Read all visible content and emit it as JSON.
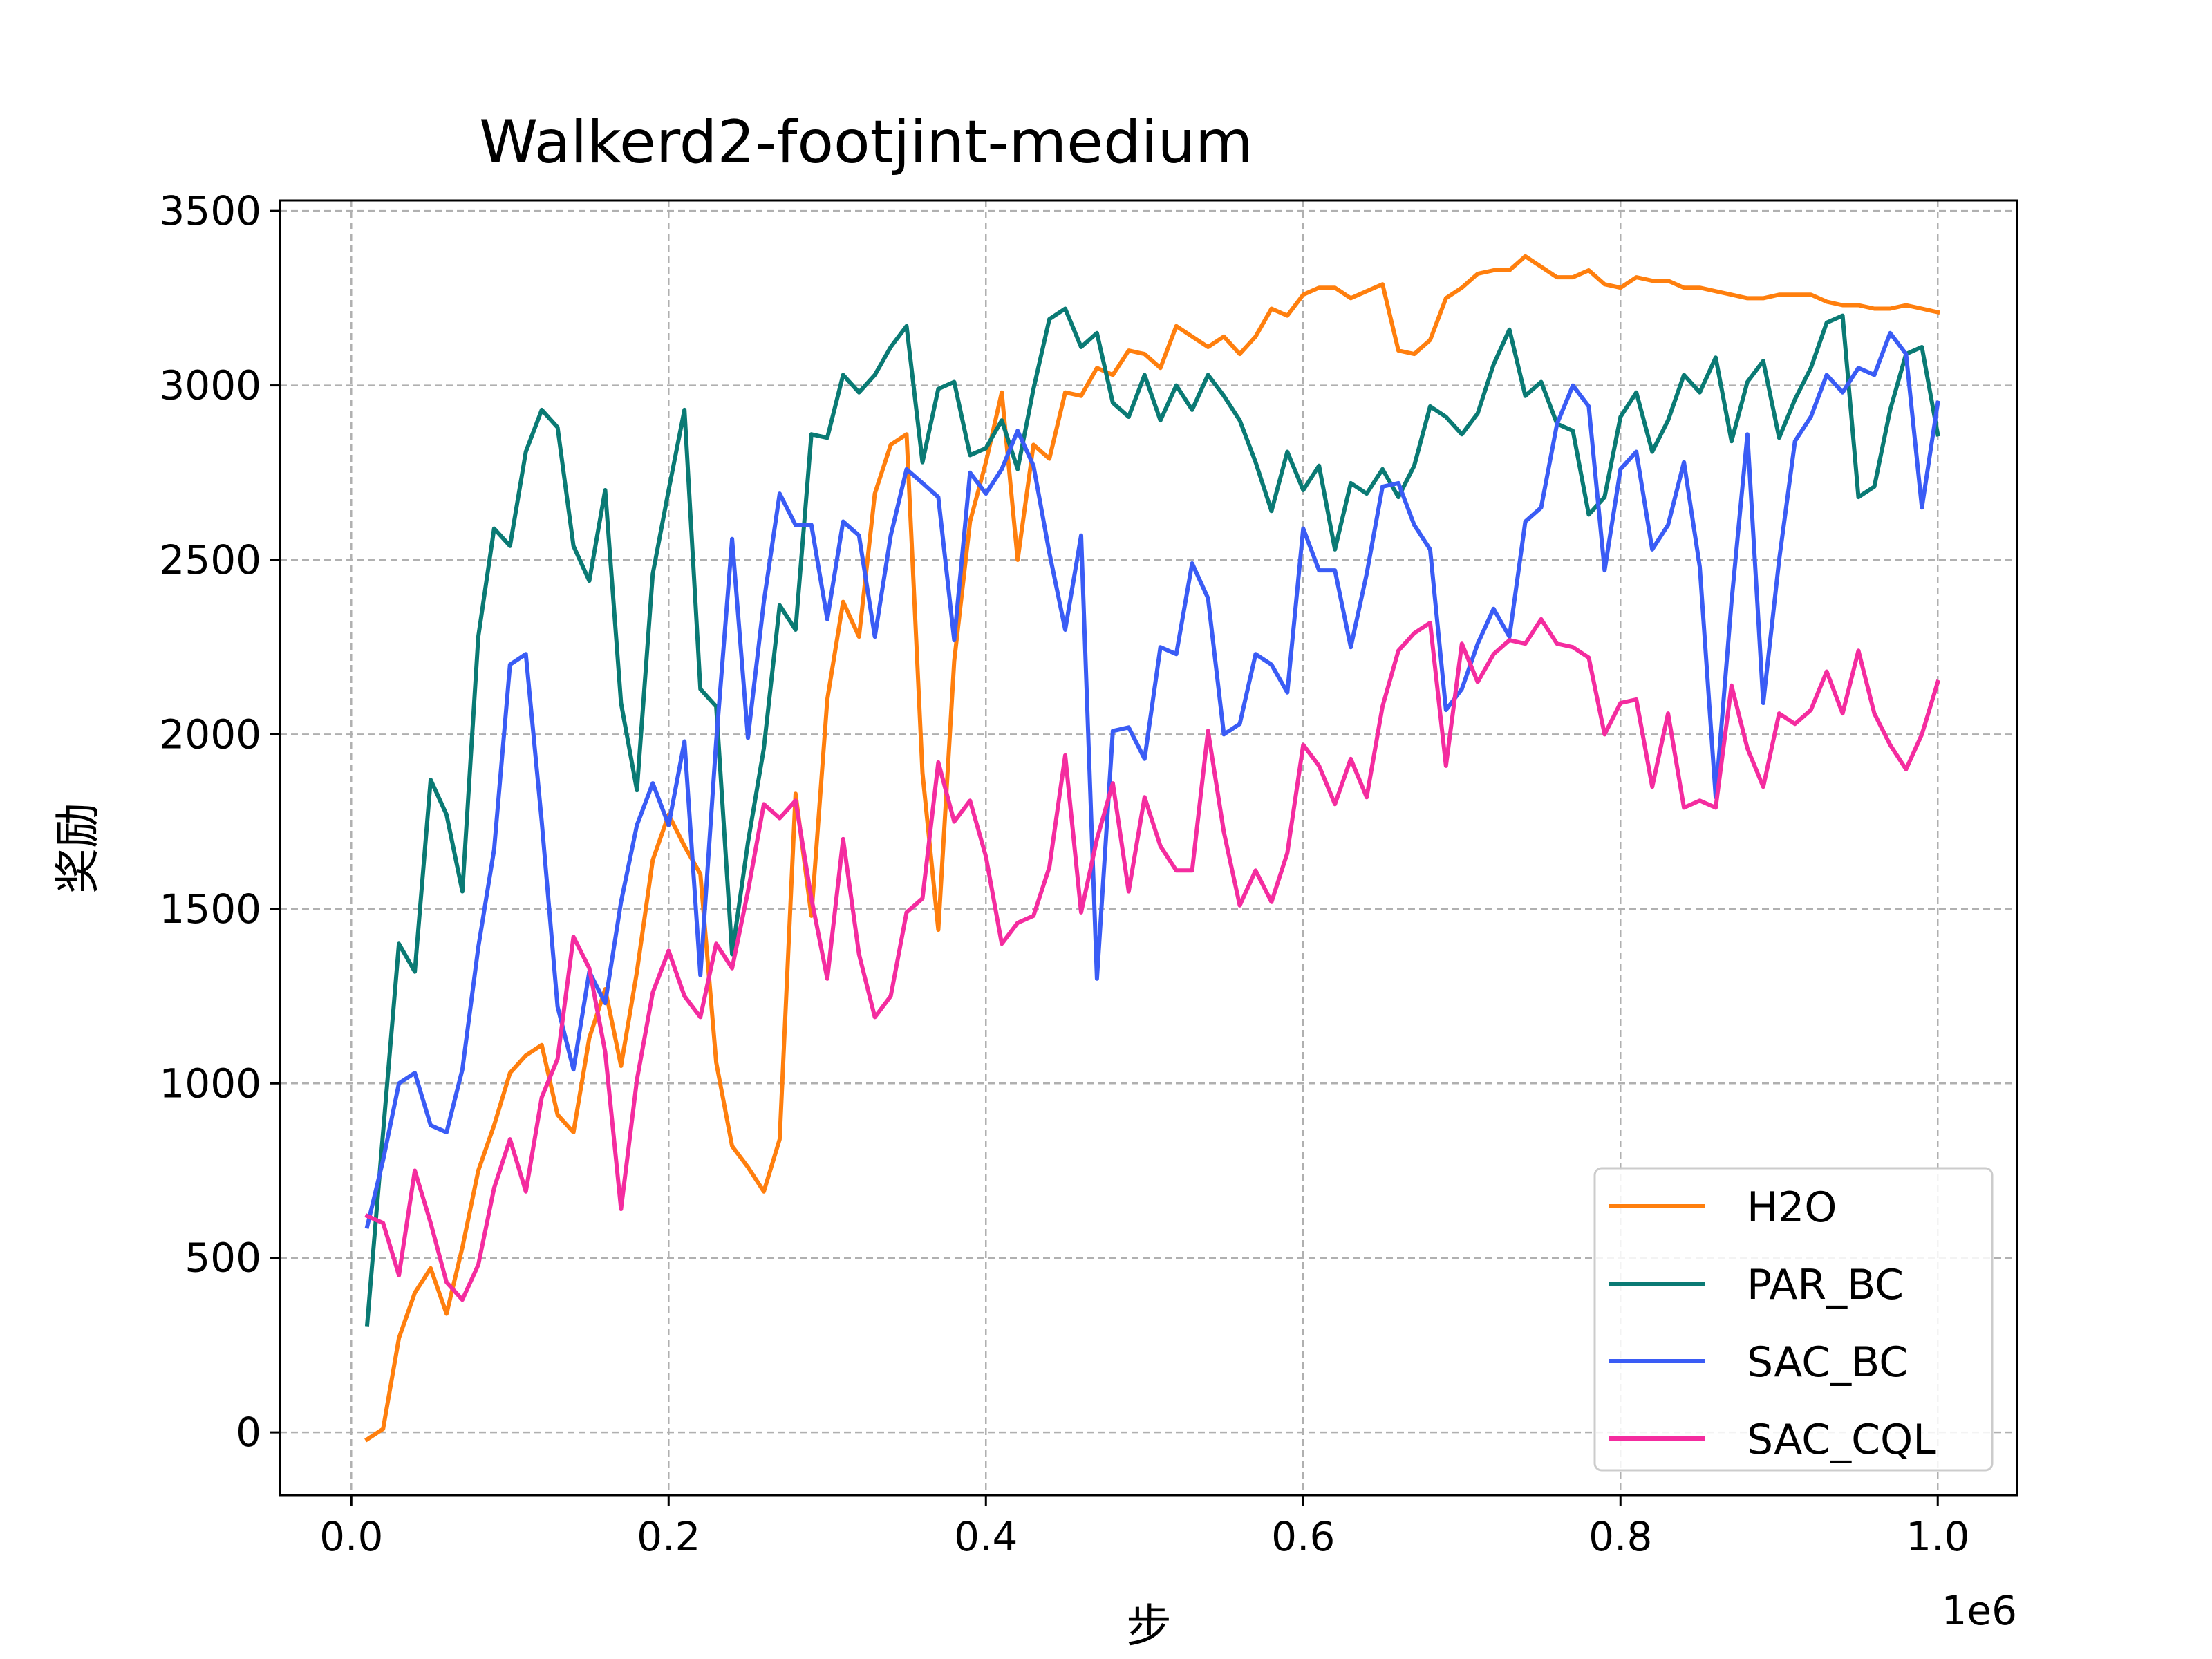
{
  "chart_data": {
    "type": "line",
    "title": "Walkerd2-footjint-medium",
    "xlabel": "步",
    "ylabel": "奖励",
    "x_offset_text": "1e6",
    "xlim": [
      -0.045,
      1.05
    ],
    "ylim": [
      -180,
      3530
    ],
    "x_ticks": [
      0.0,
      0.2,
      0.4,
      0.6,
      0.8,
      1.0
    ],
    "x_tick_labels": [
      "0.0",
      "0.2",
      "0.4",
      "0.6",
      "0.8",
      "1.0"
    ],
    "y_ticks": [
      0,
      500,
      1000,
      1500,
      2000,
      2500,
      3000,
      3500
    ],
    "y_tick_labels": [
      "0",
      "500",
      "1000",
      "1500",
      "2000",
      "2500",
      "3000",
      "3500"
    ],
    "grid": true,
    "legend_position": "lower-right",
    "x_start": 0.01,
    "x_step": 0.01,
    "series": [
      {
        "name": "H2O",
        "color": "#ff7f0e",
        "values": [
          -20,
          10,
          270,
          400,
          470,
          340,
          530,
          750,
          880,
          1030,
          1080,
          1110,
          910,
          860,
          1130,
          1270,
          1050,
          1320,
          1640,
          1770,
          1680,
          1600,
          1060,
          820,
          760,
          690,
          840,
          1830,
          1480,
          2100,
          2380,
          2280,
          2690,
          2830,
          2860,
          1890,
          1440,
          2210,
          2610,
          2780,
          2980,
          2500,
          2830,
          2790,
          2980,
          2970,
          3050,
          3030,
          3100,
          3090,
          3050,
          3170,
          3140,
          3110,
          3140,
          3090,
          3140,
          3220,
          3200,
          3260,
          3280,
          3280,
          3250,
          3270,
          3290,
          3100,
          3090,
          3130,
          3250,
          3280,
          3320,
          3330,
          3330,
          3370,
          3340,
          3310,
          3310,
          3330,
          3290,
          3280,
          3310,
          3300,
          3300,
          3280,
          3280,
          3270,
          3260,
          3250,
          3250,
          3260,
          3260,
          3260,
          3240,
          3230,
          3230,
          3220,
          3220,
          3230,
          3220,
          3210
        ]
      },
      {
        "name": "PAR_BC",
        "color": "#0a7a74",
        "values": [
          310,
          860,
          1400,
          1320,
          1870,
          1770,
          1550,
          2280,
          2590,
          2540,
          2810,
          2930,
          2880,
          2540,
          2440,
          2700,
          2090,
          1840,
          2460,
          2700,
          2930,
          2130,
          2080,
          1370,
          1690,
          1960,
          2370,
          2300,
          2860,
          2850,
          3030,
          2980,
          3030,
          3110,
          3170,
          2780,
          2990,
          3010,
          2800,
          2820,
          2900,
          2760,
          2990,
          3190,
          3220,
          3110,
          3150,
          2950,
          2910,
          3030,
          2900,
          3000,
          2930,
          3030,
          2970,
          2900,
          2780,
          2640,
          2810,
          2700,
          2770,
          2530,
          2720,
          2690,
          2760,
          2680,
          2770,
          2940,
          2910,
          2860,
          2920,
          3060,
          3160,
          2970,
          3010,
          2890,
          2870,
          2630,
          2680,
          2910,
          2980,
          2810,
          2900,
          3030,
          2980,
          3080,
          2840,
          3010,
          3070,
          2850,
          2960,
          3050,
          3180,
          3200,
          2680,
          2710,
          2930,
          3090,
          3110,
          2860
        ]
      },
      {
        "name": "SAC_BC",
        "color": "#3a5cf5",
        "values": [
          590,
          780,
          1000,
          1030,
          880,
          860,
          1040,
          1390,
          1670,
          2200,
          2230,
          1750,
          1220,
          1040,
          1320,
          1230,
          1520,
          1740,
          1860,
          1740,
          1980,
          1310,
          1980,
          2560,
          1990,
          2380,
          2690,
          2600,
          2600,
          2330,
          2610,
          2570,
          2280,
          2570,
          2760,
          2720,
          2680,
          2270,
          2750,
          2690,
          2760,
          2870,
          2770,
          2520,
          2300,
          2570,
          1300,
          2010,
          2020,
          1930,
          2250,
          2230,
          2490,
          2390,
          2000,
          2030,
          2230,
          2200,
          2120,
          2590,
          2470,
          2470,
          2250,
          2460,
          2710,
          2720,
          2600,
          2530,
          2070,
          2130,
          2260,
          2360,
          2280,
          2610,
          2650,
          2890,
          3000,
          2940,
          2470,
          2760,
          2810,
          2530,
          2600,
          2780,
          2480,
          1820,
          2380,
          2860,
          2090,
          2500,
          2840,
          2910,
          3030,
          2980,
          3050,
          3030,
          3150,
          3090,
          2650,
          2950
        ]
      },
      {
        "name": "SAC_CQL",
        "color": "#f42c9f",
        "values": [
          620,
          600,
          450,
          750,
          600,
          430,
          380,
          480,
          700,
          840,
          690,
          960,
          1070,
          1420,
          1330,
          1090,
          640,
          1010,
          1260,
          1380,
          1250,
          1190,
          1400,
          1330,
          1550,
          1800,
          1760,
          1810,
          1530,
          1300,
          1700,
          1370,
          1190,
          1250,
          1490,
          1530,
          1920,
          1750,
          1810,
          1650,
          1400,
          1460,
          1480,
          1620,
          1940,
          1490,
          1700,
          1860,
          1550,
          1820,
          1680,
          1610,
          1610,
          2010,
          1720,
          1510,
          1610,
          1520,
          1660,
          1970,
          1910,
          1800,
          1930,
          1820,
          2080,
          2240,
          2290,
          2320,
          1910,
          2260,
          2150,
          2230,
          2270,
          2260,
          2330,
          2260,
          2250,
          2220,
          2000,
          2090,
          2100,
          1850,
          2060,
          1790,
          1810,
          1790,
          2140,
          1960,
          1850,
          2060,
          2030,
          2070,
          2180,
          2060,
          2240,
          2060,
          1970,
          1900,
          2000,
          2150
        ]
      }
    ]
  }
}
